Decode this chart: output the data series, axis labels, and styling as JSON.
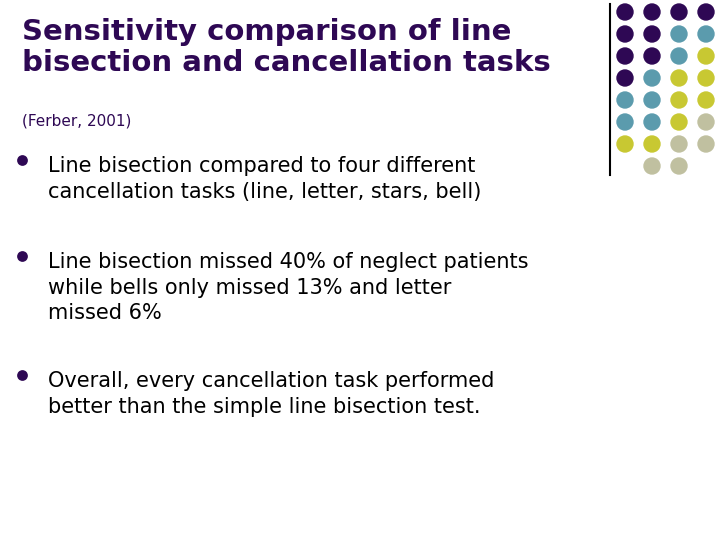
{
  "title_line1": "Sensitivity comparison of line",
  "title_line2": "bisection and cancellation tasks",
  "subtitle": "(Ferber, 2001)",
  "title_color": "#2E0854",
  "subtitle_color": "#2E0854",
  "bullet_color": "#2E0854",
  "text_color": "#000000",
  "background_color": "#FFFFFF",
  "bullets": [
    "Line bisection compared to four different\ncancellation tasks (line, letter, stars, bell)",
    "Line bisection missed 40% of neglect patients\nwhile bells only missed 13% and letter\nmissed 6%",
    "Overall, every cancellation task performed\nbetter than the simple line bisection test."
  ],
  "dot_grid_colors": [
    [
      "#2E0854",
      "#2E0854",
      "#2E0854",
      "#2E0854"
    ],
    [
      "#2E0854",
      "#2E0854",
      "#5B9BAD",
      "#5B9BAD"
    ],
    [
      "#2E0854",
      "#2E0854",
      "#5B9BAD",
      "#C8C832"
    ],
    [
      "#2E0854",
      "#5B9BAD",
      "#C8C832",
      "#C8C832"
    ],
    [
      "#5B9BAD",
      "#5B9BAD",
      "#C8C832",
      "#C8C832"
    ],
    [
      "#5B9BAD",
      "#5B9BAD",
      "#C8C832",
      "#C0C0A0"
    ],
    [
      "#C8C832",
      "#C8C832",
      "#C0C0A0",
      "#C0C0A0"
    ],
    [
      "",
      "#C0C0A0",
      "#C0C0A0",
      ""
    ]
  ],
  "title_fontsize": 21,
  "subtitle_fontsize": 11,
  "body_fontsize": 15,
  "bullet_size": 60
}
